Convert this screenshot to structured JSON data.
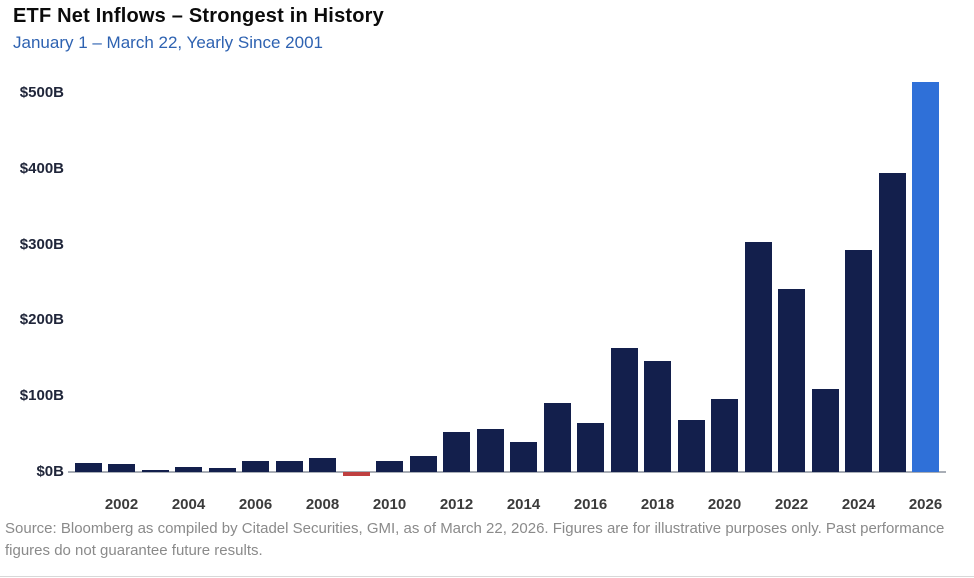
{
  "header": {
    "title": "ETF Net Inflows – Strongest in History",
    "subtitle": "January 1 – March 22, Yearly Since 2001"
  },
  "footer": {
    "source_note": "Source: Bloomberg as compiled by Citadel Securities, GMI, as of March 22, 2026. Figures are for illustrative purposes only. Past performance figures do not guarantee future results."
  },
  "colors": {
    "bar_default": "#131f4c",
    "bar_negative": "#bf4040",
    "bar_highlight": "#2f70d8",
    "subtitle_text": "#2e62b1",
    "source_text": "#8a8a8a",
    "axis_line": "#a9aeb6",
    "y_tick_text": "#20263a",
    "x_tick_text": "#3b3b3b"
  },
  "chart_data": {
    "type": "bar",
    "title": "ETF Net Inflows – Strongest in History",
    "subtitle": "January 1 – March 22, Yearly Since 2001",
    "unit": "USD billions (net inflows, Jan 1 – Mar 22 of each year)",
    "categories": [
      2001,
      2002,
      2003,
      2004,
      2005,
      2006,
      2007,
      2008,
      2009,
      2010,
      2011,
      2012,
      2013,
      2014,
      2015,
      2016,
      2017,
      2018,
      2019,
      2020,
      2021,
      2022,
      2023,
      2024,
      2025,
      2026
    ],
    "values": [
      12,
      10,
      2,
      7,
      5,
      14,
      15,
      19,
      -5,
      14,
      21,
      53,
      57,
      39,
      91,
      65,
      164,
      146,
      68,
      96,
      303,
      242,
      109,
      293,
      395,
      515
    ],
    "highlight_year": 2026,
    "negative_years": [
      2009
    ],
    "y_ticks": [
      "$0B",
      "$100B",
      "$200B",
      "$300B",
      "$400B",
      "$500B"
    ],
    "y_tick_values": [
      0,
      100,
      200,
      300,
      400,
      500
    ],
    "x_tick_years": [
      2002,
      2004,
      2006,
      2008,
      2010,
      2012,
      2014,
      2016,
      2018,
      2020,
      2022,
      2024,
      2026
    ],
    "ylim": [
      -10,
      520
    ],
    "grid": false,
    "legend": false
  }
}
